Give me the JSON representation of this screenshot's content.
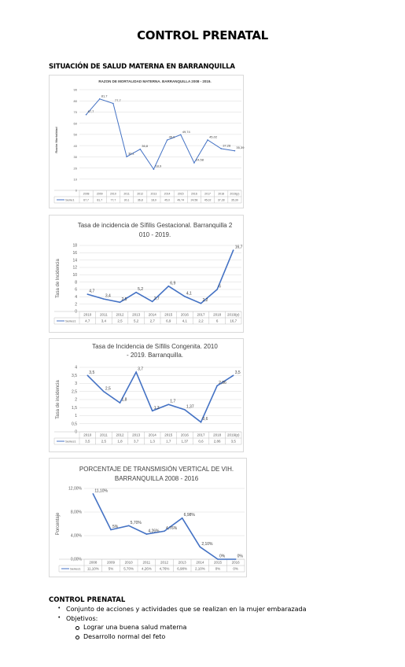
{
  "page": {
    "title": "CONTROL PRENATAL",
    "section_heading": "SITUACIÓN DE SALUD MATERNA EN BARRANQUILLA"
  },
  "chart_data": [
    {
      "type": "line",
      "title": "RAZON DE MORTALIDAD MATERNA. BARRANQUILLA 2008 - 2019.",
      "ylabel": "Razón Mortalidad",
      "categories": [
        "2008",
        "2009",
        "2010",
        "2011",
        "2012",
        "2013",
        "2014",
        "2015",
        "2016",
        "2017",
        "2018",
        "2019(p)"
      ],
      "series": [
        {
          "name": "Serie1",
          "values": [
            67.7,
            81.7,
            77.7,
            30.1,
            36.8,
            18.9,
            45.0,
            49.74,
            24.58,
            45.02,
            37.28,
            35.39
          ]
        }
      ],
      "data_labels": [
        "67,7",
        "81,7",
        "77,7",
        "30,1",
        "36,8",
        "18,9",
        "45,0",
        "49,74",
        "24,58",
        "45,02",
        "37,28",
        "35,39"
      ],
      "table_values": [
        "67,7",
        "81,7",
        "77,7",
        "30,1",
        "36,8",
        "18,9",
        "45,0",
        "49,74",
        "24,58",
        "45,02",
        "37,28",
        "35,39"
      ],
      "yticks": [
        "0",
        "10",
        "20",
        "30",
        "40",
        "50",
        "60",
        "70",
        "80",
        "90"
      ],
      "ylim": [
        0,
        90
      ],
      "grid": true,
      "color": "#4472c4"
    },
    {
      "type": "line",
      "title": "Tasa de incidencia de Sífilis Gestacional. Barranquilla 2010 - 2019.",
      "ylabel": "Tasa de Incidencia",
      "categories": [
        "2010",
        "2011",
        "2012",
        "2013",
        "2014",
        "2015",
        "2016",
        "2017",
        "2018",
        "2019(p)"
      ],
      "series": [
        {
          "name": "Series1",
          "values": [
            4.7,
            3.4,
            2.5,
            5.2,
            2.7,
            6.9,
            4.1,
            2.2,
            6,
            16.7
          ]
        }
      ],
      "data_labels": [
        "4,7",
        "3,4",
        "2,5",
        "5,2",
        "2,7",
        "6,9",
        "4,1",
        "2,2",
        "6",
        "16,7"
      ],
      "table_values": [
        "4,7",
        "3,4",
        "2,5",
        "5,2",
        "2,7",
        "6,9",
        "4,1",
        "2,2",
        "6",
        "16,7"
      ],
      "yticks": [
        "0",
        "2",
        "4",
        "6",
        "8",
        "10",
        "12",
        "14",
        "16",
        "18"
      ],
      "ylim": [
        0,
        18
      ],
      "grid": true,
      "color": "#4472c4"
    },
    {
      "type": "line",
      "title": "Tasa de Incidencia de Sífilis Congenita. 2010 - 2019. Barranquilla.",
      "ylabel": "Tasa de incidencia",
      "categories": [
        "2010",
        "2011",
        "2012",
        "2013",
        "2014",
        "2015",
        "2016",
        "2017",
        "2018",
        "2019(p)"
      ],
      "series": [
        {
          "name": "Series1",
          "values": [
            3.5,
            2.5,
            1.8,
            3.7,
            1.3,
            1.7,
            1.37,
            0.6,
            2.86,
            3.5
          ]
        }
      ],
      "data_labels": [
        "3,5",
        "2,5",
        "1,8",
        "3,7",
        "1,3",
        "1,7",
        "1,37",
        "0,6",
        "2,86",
        "3,5"
      ],
      "table_values": [
        "3,5",
        "2,5",
        "1,8",
        "3,7",
        "1,3",
        "1,7",
        "1,37",
        "0,6",
        "2,86",
        "3,5"
      ],
      "yticks": [
        "0",
        "0,5",
        "1",
        "1,5",
        "2",
        "2,5",
        "3",
        "3,5",
        "4"
      ],
      "ylim": [
        0,
        4
      ],
      "grid": true,
      "color": "#4472c4"
    },
    {
      "type": "line",
      "title": "PORCENTAJE DE TRANSMISIÓN VERTICAL DE VIH. BARRANQUILLA 2008 - 2016",
      "ylabel": "Porcentaje",
      "categories": [
        "2008",
        "2009",
        "2010",
        "2011",
        "2012",
        "2013",
        "2014",
        "2015",
        "2016"
      ],
      "series": [
        {
          "name": "Series1",
          "values": [
            11.1,
            5,
            5.7,
            4.26,
            4.76,
            6.98,
            2.1,
            0,
            0
          ]
        }
      ],
      "data_labels": [
        "11,10%",
        "5%",
        "5,70%",
        "4,26%",
        "4,76%",
        "6,98%",
        "2,10%",
        "0%",
        "0%"
      ],
      "table_values": [
        "11,10%",
        "5%",
        "5,70%",
        "4,26%",
        "4,76%",
        "6,98%",
        "2,10%",
        "0%",
        "0%"
      ],
      "yticks": [
        "0,00%",
        "4,00%",
        "8,00%",
        "12,00%"
      ],
      "ylim": [
        0,
        12
      ],
      "grid": true,
      "color": "#4472c4"
    }
  ],
  "bottom": {
    "title": "CONTROL PRENATAL",
    "item1": "Conjunto de acciones y actividades que se realizan en la mujer embarazada",
    "item2": "Objetivos:",
    "sub1": "Lograr una buena salud materna",
    "sub2": "Desarrollo normal del feto"
  }
}
